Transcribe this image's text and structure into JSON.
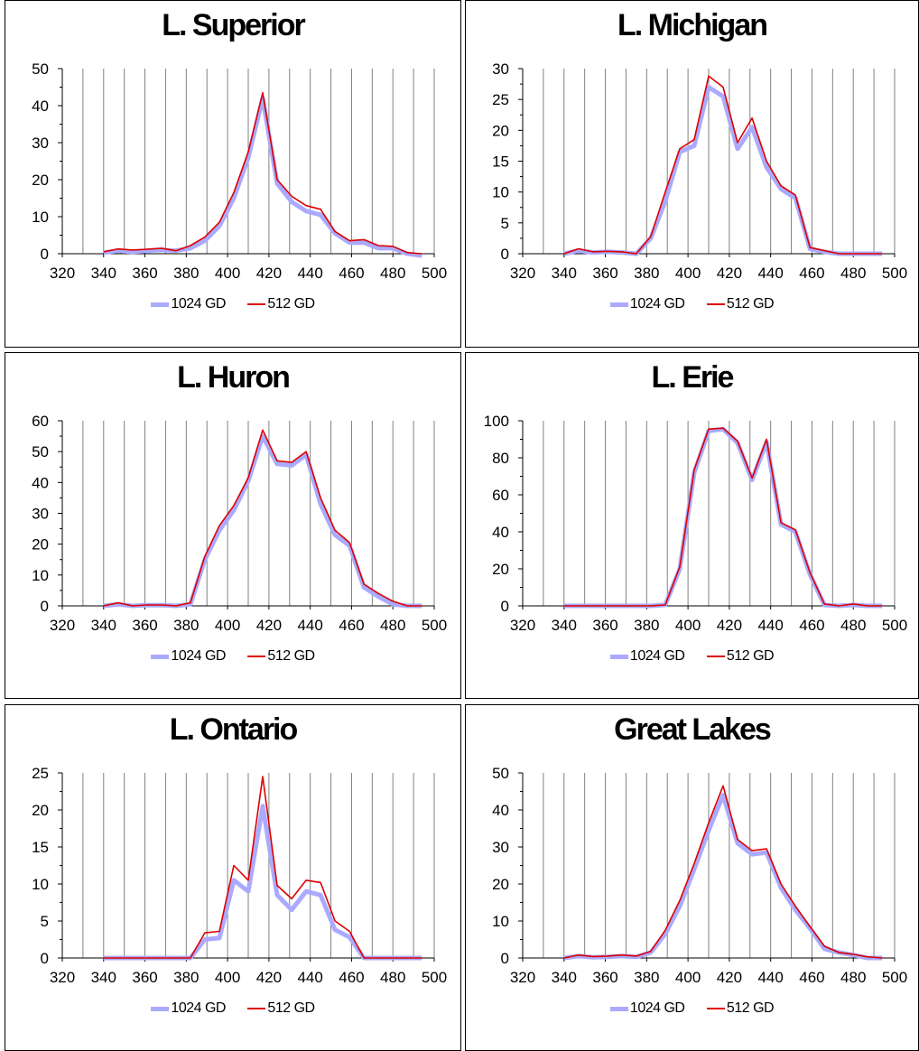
{
  "colors": {
    "series_1024": "#aaaaff",
    "series_512": "#dd0000",
    "grid": "#808080",
    "axis": "#000000"
  },
  "chart_data": [
    {
      "type": "line",
      "title": "L. Superior",
      "x": [
        340,
        347,
        354,
        361,
        368,
        375,
        382,
        389,
        396,
        403,
        410,
        417,
        424,
        431,
        438,
        445,
        452,
        459,
        466,
        473,
        480,
        487,
        494
      ],
      "xlim": [
        320,
        500
      ],
      "xticks": [
        320,
        340,
        360,
        380,
        400,
        420,
        440,
        460,
        480,
        500
      ],
      "ylim": [
        0,
        50
      ],
      "yticks": [
        0,
        10,
        20,
        30,
        40,
        50
      ],
      "series": [
        {
          "name": "1024 GD",
          "values": [
            0.3,
            0.8,
            0.5,
            0.8,
            1.0,
            0.8,
            1.5,
            3.5,
            7.5,
            15,
            26,
            42,
            19,
            14,
            11.5,
            10.5,
            5.5,
            3,
            3,
            1.5,
            1.5,
            0,
            -0.5
          ]
        },
        {
          "name": "512 GD",
          "values": [
            0.5,
            1.3,
            1.0,
            1.2,
            1.5,
            0.8,
            2.2,
            4.5,
            8.5,
            16.5,
            27.5,
            43.5,
            20,
            15.5,
            13,
            12,
            6,
            3.5,
            3.8,
            2.2,
            2,
            0.3,
            0
          ]
        }
      ],
      "legend": "bottom"
    },
    {
      "type": "line",
      "title": "L. Michigan",
      "x": [
        340,
        347,
        354,
        361,
        368,
        375,
        382,
        389,
        396,
        403,
        410,
        417,
        424,
        431,
        438,
        445,
        452,
        459,
        466,
        473,
        480,
        487,
        494
      ],
      "xlim": [
        320,
        500
      ],
      "xticks": [
        320,
        340,
        360,
        380,
        400,
        420,
        440,
        460,
        480,
        500
      ],
      "ylim": [
        0,
        30
      ],
      "yticks": [
        0,
        5,
        10,
        15,
        20,
        25,
        30
      ],
      "series": [
        {
          "name": "1024 GD",
          "values": [
            0,
            0.5,
            0.2,
            0.3,
            0.2,
            0,
            2.5,
            8.5,
            16.5,
            17.5,
            27,
            25.5,
            17,
            20.5,
            14,
            10.5,
            9,
            0.8,
            0.3,
            0,
            0,
            0,
            0
          ]
        },
        {
          "name": "512 GD",
          "values": [
            0,
            0.8,
            0.3,
            0.4,
            0.3,
            0,
            2.8,
            10,
            17,
            18.5,
            28.8,
            27,
            18,
            22,
            15,
            11,
            9.5,
            1,
            0.5,
            0,
            0,
            0,
            0
          ]
        }
      ],
      "legend": "bottom"
    },
    {
      "type": "line",
      "title": "L. Huron",
      "x": [
        340,
        347,
        354,
        361,
        368,
        375,
        382,
        389,
        396,
        403,
        410,
        417,
        424,
        431,
        438,
        445,
        452,
        459,
        466,
        473,
        480,
        487,
        494
      ],
      "xlim": [
        320,
        500
      ],
      "xticks": [
        320,
        340,
        360,
        380,
        400,
        420,
        440,
        460,
        480,
        500
      ],
      "ylim": [
        0,
        60
      ],
      "yticks": [
        0,
        10,
        20,
        30,
        40,
        50,
        60
      ],
      "series": [
        {
          "name": "1024 GD",
          "values": [
            0,
            0.5,
            0,
            0.2,
            0.2,
            0,
            0.5,
            15,
            24.5,
            31,
            40.5,
            55,
            46,
            45.5,
            49,
            33,
            23,
            19.5,
            6,
            3,
            0.5,
            0,
            0
          ]
        },
        {
          "name": "512 GD",
          "values": [
            0,
            1,
            0,
            0.3,
            0.3,
            0,
            1,
            16,
            26,
            32.5,
            41.5,
            57,
            47,
            46.5,
            50,
            35,
            24.5,
            20.5,
            7,
            4,
            1.5,
            0,
            0
          ]
        }
      ],
      "legend": "bottom"
    },
    {
      "type": "line",
      "title": "L. Erie",
      "x": [
        340,
        347,
        354,
        361,
        368,
        375,
        382,
        389,
        396,
        403,
        410,
        417,
        424,
        431,
        438,
        445,
        452,
        459,
        466,
        473,
        480,
        487,
        494
      ],
      "xlim": [
        320,
        500
      ],
      "xticks": [
        320,
        340,
        360,
        380,
        400,
        420,
        440,
        460,
        480,
        500
      ],
      "ylim": [
        0,
        100
      ],
      "yticks": [
        0,
        20,
        40,
        60,
        80,
        100
      ],
      "series": [
        {
          "name": "1024 GD",
          "values": [
            0,
            0,
            0,
            0,
            0,
            0,
            0,
            0.5,
            20,
            72,
            94.5,
            95.5,
            88,
            68,
            88.5,
            44,
            40,
            17,
            0.5,
            0,
            0.5,
            0,
            0
          ]
        },
        {
          "name": "512 GD",
          "values": [
            0,
            0,
            0,
            0,
            0,
            0,
            0,
            0.5,
            21,
            73.5,
            95.5,
            96,
            89,
            69,
            90,
            45,
            41,
            18,
            1,
            0,
            1,
            0,
            0
          ]
        }
      ],
      "legend": "bottom"
    },
    {
      "type": "line",
      "title": "L. Ontario",
      "x": [
        340,
        347,
        354,
        361,
        368,
        375,
        382,
        389,
        396,
        403,
        410,
        417,
        424,
        431,
        438,
        445,
        452,
        459,
        466,
        473,
        480,
        487,
        494
      ],
      "xlim": [
        320,
        500
      ],
      "xticks": [
        320,
        340,
        360,
        380,
        400,
        420,
        440,
        460,
        480,
        500
      ],
      "ylim": [
        0,
        25
      ],
      "yticks": [
        0,
        5,
        10,
        15,
        20,
        25
      ],
      "series": [
        {
          "name": "1024 GD",
          "values": [
            0,
            0,
            0,
            0,
            0,
            0,
            0,
            2.5,
            2.7,
            10.5,
            9,
            20.5,
            8.5,
            6.5,
            9,
            8.5,
            3.8,
            2.8,
            0,
            0,
            0,
            0,
            0
          ]
        },
        {
          "name": "512 GD",
          "values": [
            0,
            0,
            0,
            0,
            0,
            0,
            0,
            3.4,
            3.6,
            12.5,
            10.5,
            24.5,
            9.8,
            8,
            10.5,
            10.2,
            5,
            3.6,
            0,
            0,
            0,
            0,
            0
          ]
        }
      ],
      "legend": "bottom"
    },
    {
      "type": "line",
      "title": "Great Lakes",
      "x": [
        340,
        347,
        354,
        361,
        368,
        375,
        382,
        389,
        396,
        403,
        410,
        417,
        424,
        431,
        438,
        445,
        452,
        459,
        466,
        473,
        480,
        487,
        494
      ],
      "xlim": [
        320,
        500
      ],
      "xticks": [
        320,
        340,
        360,
        380,
        400,
        420,
        440,
        460,
        480,
        500
      ],
      "ylim": [
        0,
        50
      ],
      "yticks": [
        0,
        10,
        20,
        30,
        40,
        50
      ],
      "series": [
        {
          "name": "1024 GD",
          "values": [
            0,
            0.5,
            0.2,
            0.3,
            0.5,
            0.3,
            1.5,
            6.5,
            14,
            24,
            34.5,
            44,
            31,
            28,
            28.5,
            19,
            13,
            8,
            2.5,
            1.5,
            0.8,
            0,
            0
          ]
        },
        {
          "name": "512 GD",
          "values": [
            0,
            0.8,
            0.4,
            0.5,
            0.8,
            0.5,
            1.8,
            7.5,
            15.5,
            25.5,
            36.5,
            46.5,
            32,
            29,
            29.5,
            20,
            14,
            8.5,
            3.2,
            1.5,
            1,
            0.3,
            0
          ]
        }
      ],
      "legend": "bottom"
    }
  ]
}
